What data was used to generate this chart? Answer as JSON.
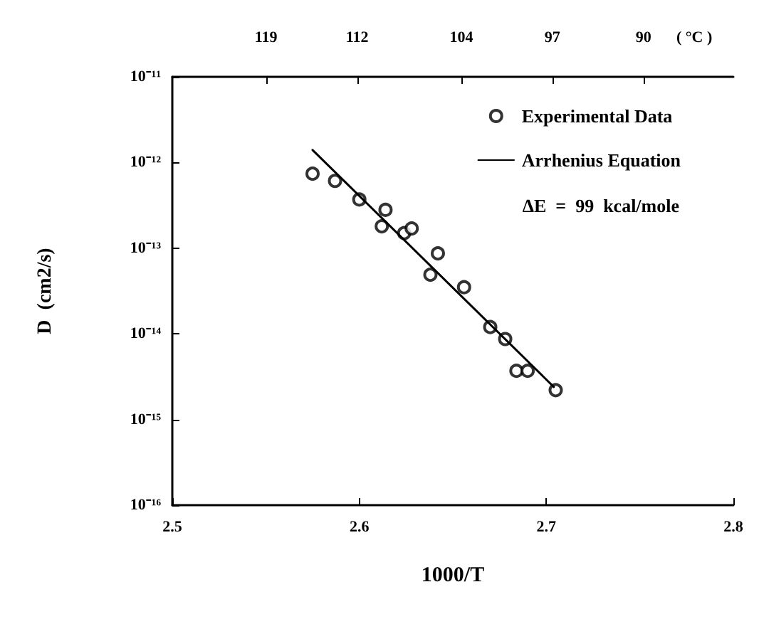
{
  "chart_data": {
    "type": "scatter",
    "xlabel": "1000/T",
    "ylabel": "D  (cm2/s)",
    "x2label": "( °C )",
    "xlim": [
      2.5,
      2.8
    ],
    "xticks": [
      2.5,
      2.6,
      2.7,
      2.8
    ],
    "x2lim": [
      126.2,
      83.1
    ],
    "x2ticks": [
      119,
      112,
      104,
      97,
      90
    ],
    "ylim": [
      1e-16,
      1e-11
    ],
    "yticks": [
      {
        "value": 1e-11,
        "label": "10⁻¹¹"
      },
      {
        "value": 1e-12,
        "label": "10⁻¹²"
      },
      {
        "value": 1e-13,
        "label": "10⁻¹³"
      },
      {
        "value": 1e-14,
        "label": "10⁻¹⁴"
      },
      {
        "value": 1e-15,
        "label": "10⁻¹⁵"
      },
      {
        "value": 1e-16,
        "label": "10⁻¹⁶"
      }
    ],
    "log": "y",
    "grid": false,
    "legend": "top right",
    "series": [
      {
        "name": "Experimental Data",
        "marker": "circle",
        "color": "#000000",
        "x": [
          2.575,
          2.587,
          2.6,
          2.614,
          2.612,
          2.624,
          2.628,
          2.642,
          2.638,
          2.656,
          2.67,
          2.678,
          2.684,
          2.69,
          2.705
        ],
        "values": [
          7.4e-13,
          6.1e-13,
          3.7e-13,
          2.8e-13,
          1.8e-13,
          1.5e-13,
          1.7e-13,
          8.7e-14,
          4.9e-14,
          3.5e-14,
          1.2e-14,
          8.7e-15,
          3.7e-15,
          3.7e-15,
          2.2e-15
        ]
      },
      {
        "name": "Arrhenius Equation",
        "type": "line",
        "marker": "none",
        "line_style": "solid",
        "color": "#000000",
        "x": [
          2.575,
          2.704
        ],
        "values": [
          1.4e-12,
          2.4e-15
        ]
      }
    ],
    "annotations": [
      "ΔE  =  99  kcal/mole"
    ]
  }
}
